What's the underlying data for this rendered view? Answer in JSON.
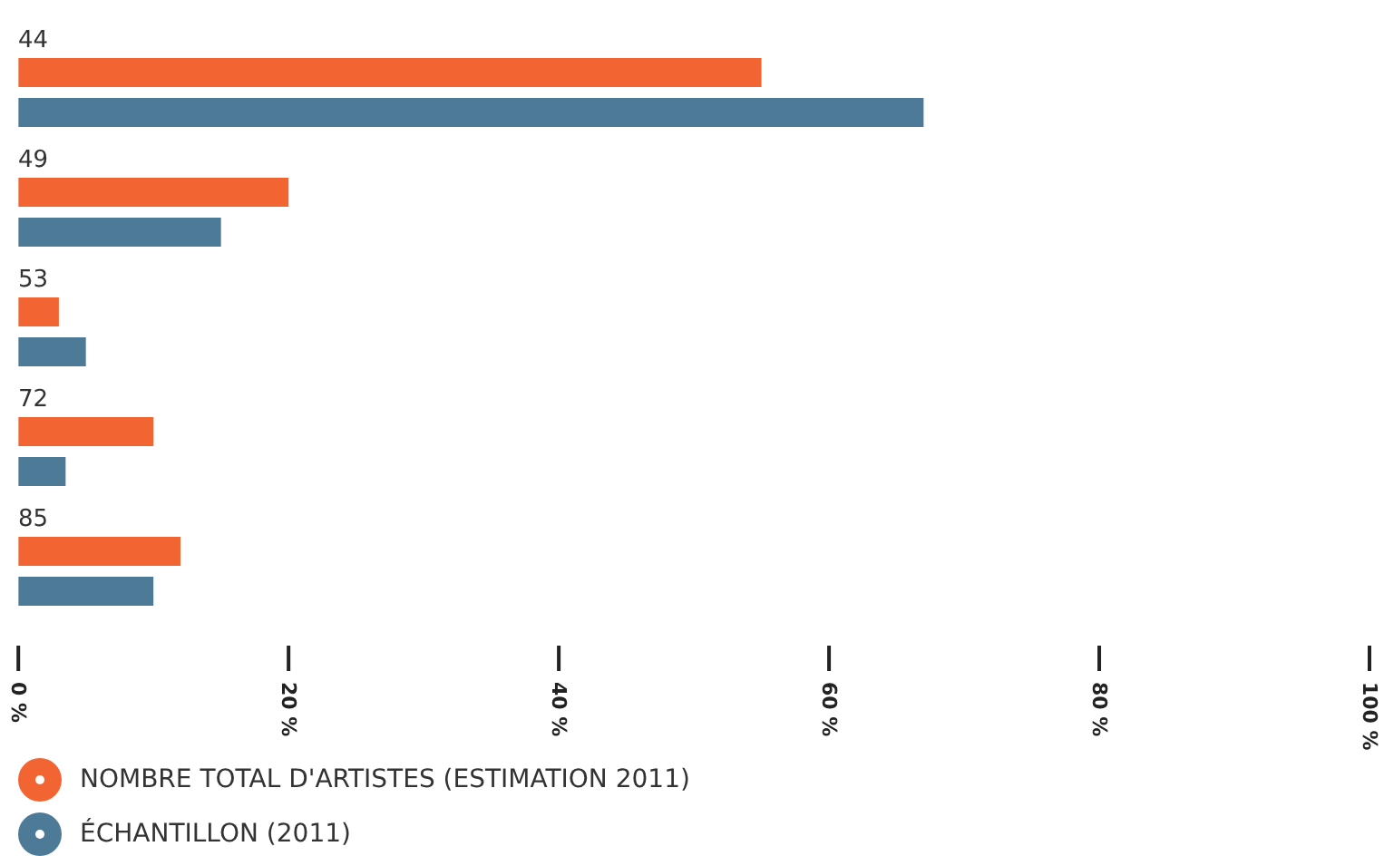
{
  "chart_data": {
    "type": "bar",
    "orientation": "horizontal",
    "categories": [
      "44",
      "49",
      "53",
      "72",
      "85"
    ],
    "series": [
      {
        "name": "NOMBRE TOTAL D'ARTISTES (ESTIMATION 2011)",
        "color": "#f26532",
        "values": [
          55,
          20,
          3,
          10,
          12
        ]
      },
      {
        "name": "ÉCHANTILLON (2011)",
        "color": "#4d7a96",
        "values": [
          67,
          15,
          5,
          3.5,
          10
        ]
      }
    ],
    "xlim": [
      0,
      100
    ],
    "xticks": [
      {
        "value": 0,
        "label": "0 %"
      },
      {
        "value": 20,
        "label": "20 %"
      },
      {
        "value": 40,
        "label": "40 %"
      },
      {
        "value": 60,
        "label": "60 %"
      },
      {
        "value": 80,
        "label": "80 %"
      },
      {
        "value": 100,
        "label": "100 %"
      }
    ],
    "legend": "bottom"
  }
}
